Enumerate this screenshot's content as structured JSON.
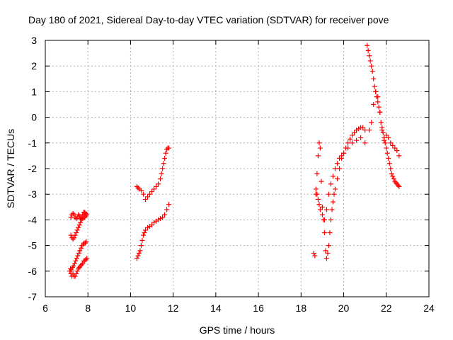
{
  "chart_data": {
    "type": "scatter",
    "title": "Day 180 of 2021, Sidereal Day-to-day VTEC variation (SDTVAR) for receiver pove",
    "xlabel": "GPS time / hours",
    "ylabel": "SDTVAR / TECUs",
    "xlim": [
      6,
      24
    ],
    "ylim": [
      -7,
      3
    ],
    "xticks": [
      "6",
      "8",
      "10",
      "12",
      "14",
      "16",
      "18",
      "20",
      "22",
      "24"
    ],
    "yticks": [
      "3",
      "2",
      "1",
      "0",
      "-1",
      "-2",
      "-3",
      "-4",
      "-5",
      "-6",
      "-7"
    ],
    "grid": true,
    "legend": "none",
    "marker": "plus",
    "color": "#ff0000",
    "series": [
      {
        "x": [
          7.15,
          7.2,
          7.25,
          7.3,
          7.35,
          7.4,
          7.45,
          7.5,
          7.55,
          7.6,
          7.65,
          7.7,
          7.75,
          7.8,
          7.85,
          7.9,
          7.95,
          7.18,
          7.22,
          7.28,
          7.32,
          7.38,
          7.42,
          7.48,
          7.52,
          7.58,
          7.62,
          7.68,
          7.72,
          7.78,
          7.82,
          7.88,
          7.92,
          7.2,
          7.25,
          7.3,
          7.35,
          7.4,
          7.45,
          7.5,
          7.55,
          7.6,
          7.65,
          7.7,
          7.75,
          7.8,
          7.85,
          7.9,
          7.2,
          7.25,
          7.3,
          7.35,
          7.4,
          7.45,
          7.5,
          7.55,
          7.6,
          7.65,
          7.7,
          7.75,
          7.8,
          7.85,
          7.9,
          7.95
        ],
        "y": [
          -6.0,
          -6.1,
          -6.2,
          -6.1,
          -6.2,
          -6.2,
          -6.1,
          -6.0,
          -5.9,
          -5.85,
          -5.8,
          -5.75,
          -5.7,
          -5.6,
          -5.6,
          -5.55,
          -5.5,
          -5.9,
          -5.95,
          -5.85,
          -5.8,
          -5.7,
          -5.6,
          -5.5,
          -5.4,
          -5.3,
          -5.2,
          -5.1,
          -5.0,
          -4.95,
          -4.9,
          -4.9,
          -4.85,
          -4.6,
          -4.7,
          -4.75,
          -4.7,
          -4.6,
          -4.5,
          -4.4,
          -4.3,
          -4.2,
          -4.1,
          -4.0,
          -3.95,
          -3.9,
          -3.9,
          -3.85,
          -3.9,
          -3.8,
          -3.75,
          -3.8,
          -3.9,
          -3.95,
          -3.9,
          -3.8,
          -3.85,
          -3.95,
          -3.9,
          -3.8,
          -3.7,
          -3.7,
          -3.75,
          -3.8
        ]
      },
      {
        "x": [
          10.3,
          10.35,
          10.4,
          10.45,
          10.5,
          10.55,
          10.6,
          10.65,
          10.7,
          10.8,
          10.9,
          11.0,
          11.1,
          11.2,
          11.3,
          11.4,
          11.5,
          11.6,
          11.7,
          11.8,
          10.3,
          10.35,
          10.4,
          10.5,
          10.6,
          10.7,
          10.8,
          10.9,
          11.0,
          11.1,
          11.2,
          11.3,
          11.4,
          11.45,
          11.5,
          11.55,
          11.6,
          11.65,
          11.7,
          11.75,
          11.8
        ],
        "y": [
          -5.5,
          -5.4,
          -5.3,
          -5.2,
          -5.0,
          -4.8,
          -4.6,
          -4.5,
          -4.4,
          -4.3,
          -4.25,
          -4.2,
          -4.1,
          -4.05,
          -4.0,
          -3.95,
          -3.9,
          -3.8,
          -3.6,
          -3.4,
          -2.7,
          -2.75,
          -2.8,
          -2.85,
          -3.0,
          -3.2,
          -3.1,
          -3.0,
          -2.9,
          -2.8,
          -2.7,
          -2.6,
          -2.4,
          -2.2,
          -2.0,
          -1.8,
          -1.6,
          -1.4,
          -1.25,
          -1.2,
          -1.2
        ]
      },
      {
        "x": [
          18.6,
          18.65,
          18.7,
          18.75,
          18.8,
          18.85,
          18.9,
          18.95,
          19.0,
          19.05,
          19.1,
          19.15,
          19.2,
          19.25,
          19.3,
          19.35,
          19.4,
          19.45,
          19.5,
          19.55,
          19.6,
          19.7,
          19.8,
          19.9,
          20.0,
          20.1,
          20.2,
          20.3,
          20.4,
          20.5,
          20.6,
          20.7,
          20.8,
          20.9,
          21.0,
          18.7,
          18.75,
          18.8,
          18.85,
          18.9,
          19.0,
          19.1,
          19.2,
          19.3,
          19.4,
          19.5,
          19.6,
          19.7,
          19.8,
          19.9,
          20.0,
          20.2,
          20.4,
          20.6,
          20.8,
          21.0
        ],
        "y": [
          -5.3,
          -5.4,
          -3.0,
          -2.2,
          -1.5,
          -1.0,
          -1.2,
          -2.5,
          -3.5,
          -4.0,
          -4.5,
          -5.2,
          -5.5,
          -5.3,
          -5.0,
          -4.5,
          -4.0,
          -3.6,
          -3.3,
          -3.0,
          -2.8,
          -2.4,
          -2.0,
          -1.6,
          -1.4,
          -1.2,
          -1.0,
          -0.85,
          -0.7,
          -0.6,
          -0.5,
          -0.45,
          -0.4,
          -0.4,
          -0.5,
          -2.8,
          -3.0,
          -3.2,
          -3.4,
          -3.6,
          -3.8,
          -4.0,
          -3.6,
          -3.0,
          -2.6,
          -2.3,
          -2.0,
          -1.8,
          -1.6,
          -1.5,
          -1.4,
          -1.2,
          -1.0,
          -0.9,
          -0.8,
          -1.0
        ]
      },
      {
        "x": [
          21.1,
          21.15,
          21.2,
          21.25,
          21.3,
          21.35,
          21.4,
          21.45,
          21.5,
          21.55,
          21.6,
          21.65,
          21.7,
          21.75,
          21.8,
          21.85,
          21.9,
          21.95,
          22.0,
          22.05,
          22.1,
          22.15,
          22.2,
          22.25,
          22.3,
          22.35,
          22.4,
          22.45,
          22.5,
          22.55,
          22.6,
          21.2,
          21.3,
          21.4,
          21.5,
          21.6,
          21.7,
          21.8,
          21.9,
          22.0,
          22.1,
          22.2,
          22.3,
          22.4,
          22.5,
          22.6
        ],
        "y": [
          2.8,
          2.6,
          2.4,
          2.2,
          2.0,
          1.8,
          1.5,
          1.2,
          1.0,
          0.8,
          0.6,
          0.4,
          0.2,
          -0.2,
          -0.4,
          -0.6,
          -0.8,
          -1.0,
          -1.2,
          -1.4,
          -1.6,
          -1.8,
          -2.0,
          -2.2,
          -2.3,
          -2.4,
          -2.5,
          -2.55,
          -2.6,
          -2.65,
          -2.7,
          -0.5,
          -0.2,
          0.5,
          1.0,
          0.8,
          0.2,
          -0.5,
          -0.9,
          -0.7,
          -0.8,
          -1.0,
          -1.1,
          -1.2,
          -1.3,
          -1.5
        ]
      }
    ]
  }
}
